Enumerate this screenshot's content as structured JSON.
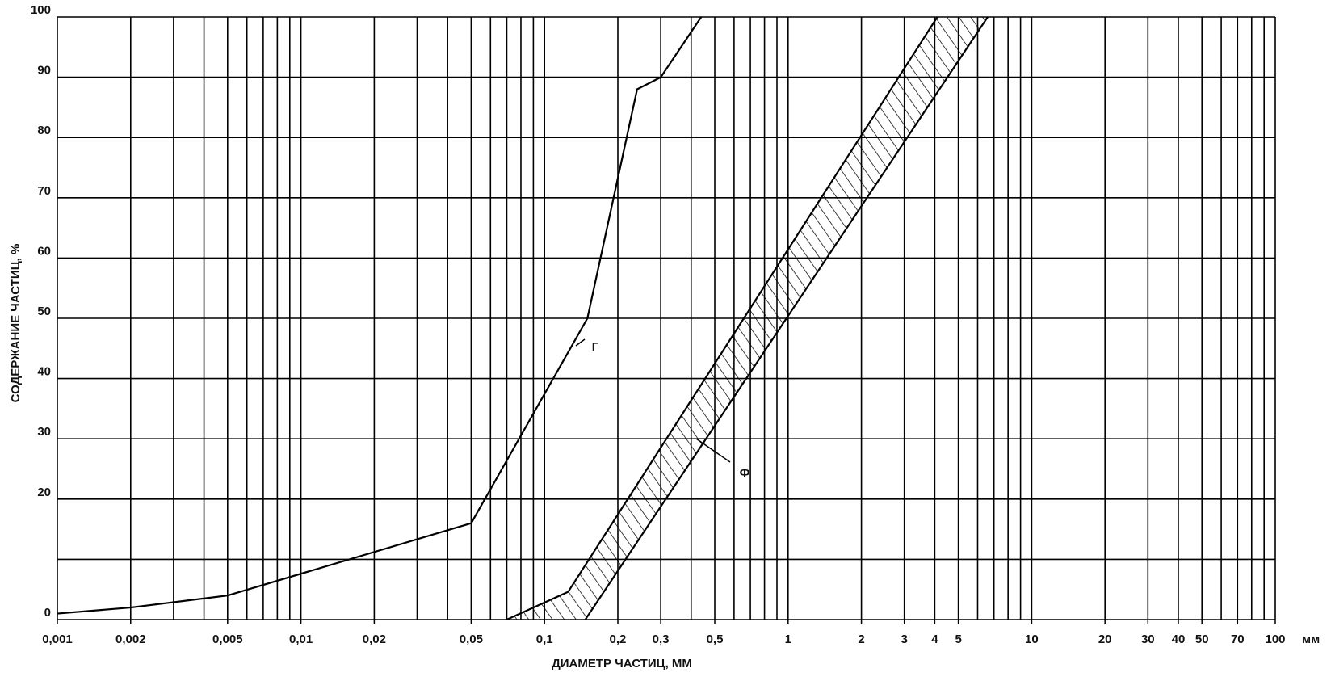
{
  "chart_data": {
    "type": "line",
    "xlabel": "ДИАМЕТР ЧАСТИЦ, ММ",
    "ylabel": "СОДЕРЖАНИЕ ЧАСТИЦ, %",
    "x_unit": "мм",
    "xscale": "log",
    "xlim": [
      0.001,
      100
    ],
    "ylim": [
      0,
      100
    ],
    "xticks": [
      {
        "value": 0.001,
        "label": "0,001"
      },
      {
        "value": 0.002,
        "label": "0,002"
      },
      {
        "value": 0.005,
        "label": "0,005"
      },
      {
        "value": 0.01,
        "label": "0,01"
      },
      {
        "value": 0.02,
        "label": "0,02"
      },
      {
        "value": 0.05,
        "label": "0,05"
      },
      {
        "value": 0.1,
        "label": "0,1"
      },
      {
        "value": 0.2,
        "label": "0,2"
      },
      {
        "value": 0.3,
        "label": "0,3"
      },
      {
        "value": 0.5,
        "label": "0,5"
      },
      1,
      2,
      3,
      4,
      5,
      10,
      20,
      30,
      40,
      50,
      70,
      100
    ],
    "yticks": [
      0,
      20,
      30,
      40,
      50,
      60,
      70,
      80,
      90,
      100
    ],
    "ygrid": [
      0,
      10,
      20,
      30,
      40,
      50,
      60,
      70,
      80,
      90,
      100
    ],
    "xgrid": [
      0.001,
      0.002,
      0.003,
      0.004,
      0.005,
      0.006,
      0.007,
      0.008,
      0.009,
      0.01,
      0.02,
      0.03,
      0.04,
      0.05,
      0.06,
      0.07,
      0.08,
      0.09,
      0.1,
      0.2,
      0.3,
      0.4,
      0.5,
      0.6,
      0.7,
      0.8,
      0.9,
      1,
      2,
      3,
      4,
      5,
      6,
      7,
      8,
      9,
      10,
      20,
      30,
      40,
      50,
      60,
      70,
      80,
      90,
      100
    ],
    "grid": true,
    "color": "#000000",
    "series": [
      {
        "name": "Г",
        "color": "#000000",
        "x": [
          0.001,
          0.002,
          0.005,
          0.05,
          0.15,
          0.24,
          0.3,
          0.44
        ],
        "values": [
          1,
          2,
          4,
          16,
          50,
          88,
          90,
          100
        ]
      }
    ],
    "band": {
      "name": "Ф",
      "upper": {
        "x": [
          0.07,
          0.125,
          4.1
        ],
        "values": [
          0,
          4.6,
          100
        ]
      },
      "lower": {
        "x": [
          0.147,
          6.6
        ],
        "values": [
          0,
          100
        ]
      }
    }
  }
}
